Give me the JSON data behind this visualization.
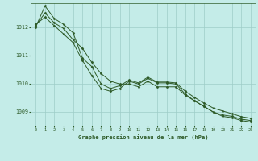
{
  "title": "Graphe pression niveau de la mer (hPa)",
  "background_color": "#c4ece8",
  "grid_color": "#9ecdc8",
  "line_color": "#2d5a27",
  "x_ticks": [
    0,
    1,
    2,
    3,
    4,
    5,
    6,
    7,
    8,
    9,
    10,
    11,
    12,
    13,
    14,
    15,
    16,
    17,
    18,
    19,
    20,
    21,
    22,
    23
  ],
  "y_ticks": [
    1009,
    1010,
    1011,
    1012
  ],
  "ylim": [
    1008.5,
    1012.85
  ],
  "xlim": [
    -0.5,
    23.5
  ],
  "series1": [
    1012.0,
    1012.75,
    1012.3,
    1012.1,
    1011.8,
    1010.9,
    1010.6,
    1009.98,
    1009.82,
    1009.92,
    1010.12,
    1010.02,
    1010.22,
    1010.05,
    1010.05,
    1010.02,
    1009.72,
    1009.5,
    1009.3,
    1009.12,
    1009.02,
    1008.92,
    1008.82,
    1008.76
  ],
  "series2": [
    1012.05,
    1012.5,
    1012.15,
    1011.95,
    1011.55,
    1011.25,
    1010.75,
    1010.35,
    1010.08,
    1009.98,
    1009.98,
    1009.88,
    1010.08,
    1009.88,
    1009.88,
    1009.88,
    1009.58,
    1009.38,
    1009.18,
    1008.98,
    1008.88,
    1008.83,
    1008.73,
    1008.68
  ],
  "series3": [
    1012.1,
    1012.35,
    1012.05,
    1011.75,
    1011.45,
    1010.82,
    1010.28,
    1009.82,
    1009.72,
    1009.82,
    1010.08,
    1009.98,
    1010.18,
    1010.02,
    1010.02,
    1009.98,
    1009.62,
    1009.38,
    1009.18,
    1008.98,
    1008.83,
    1008.78,
    1008.68,
    1008.63
  ]
}
